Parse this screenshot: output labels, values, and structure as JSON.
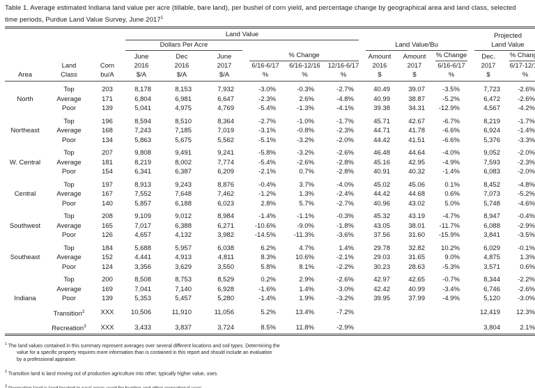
{
  "colors": {
    "background": "#ffffff",
    "text": "#1a1a1a",
    "rule": "#3f3f3f"
  },
  "title": {
    "text": "Table 1. Average estimated Indiana land value per acre (tillable, bare land), per bushel of corn yield, and percentage change by geographical area and land class, selected time periods, Purdue Land Value Survey, June 2017",
    "sup": "1"
  },
  "header": {
    "land_value": "Land Value",
    "projected_line1": "Projected",
    "projected_line2": "Land Value",
    "dollars_per_acre": "Dollars Per Acre",
    "land_value_bu": "Land Value/Bu",
    "pct_change": "% Change",
    "june": "June",
    "dec": "Dec",
    "dec_label": "Dec.",
    "amount": "Amount",
    "y2016": "2016",
    "y2017": "2017",
    "range_6_16_6_17": "6/16-6/17",
    "range_6_16_12_16": "6/16-12/16",
    "range_12_16_6_17": "12/16-6/17",
    "range_6_17_12_17": "6/17-12/17",
    "col_area": "Area",
    "col_land": "Land",
    "col_class": "Class",
    "col_corn": "Corn",
    "col_bua": "bu/A",
    "dollar_a": "$/A",
    "dollar": "$",
    "pct": "%"
  },
  "rows": [
    {
      "area": "",
      "cls": "Top",
      "sup": "",
      "gap": true,
      "values": [
        "203",
        "8,178",
        "8,153",
        "7,932",
        "-3.0%",
        "-0.3%",
        "-2.7%",
        "40.49",
        "39.07",
        "-3.5%",
        "7,723",
        "-2.6%"
      ]
    },
    {
      "area": "North",
      "cls": "Average",
      "sup": "",
      "gap": false,
      "values": [
        "171",
        "6,804",
        "6,981",
        "6,647",
        "-2.3%",
        "2.6%",
        "-4.8%",
        "40.99",
        "38.87",
        "-5.2%",
        "6,472",
        "-2.6%"
      ]
    },
    {
      "area": "",
      "cls": "Poor",
      "sup": "",
      "gap": false,
      "values": [
        "139",
        "5,041",
        "4,975",
        "4,769",
        "-5.4%",
        "-1.3%",
        "-4.1%",
        "39.38",
        "34.31",
        "-12.9%",
        "4,567",
        "-4.2%"
      ]
    },
    {
      "area": "",
      "cls": "Top",
      "sup": "",
      "gap": true,
      "values": [
        "196",
        "8,594",
        "8,510",
        "8,364",
        "-2.7%",
        "-1.0%",
        "-1.7%",
        "45.71",
        "42.67",
        "-6.7%",
        "8,219",
        "-1.7%"
      ]
    },
    {
      "area": "Northeast",
      "cls": "Average",
      "sup": "",
      "gap": false,
      "values": [
        "168",
        "7,243",
        "7,185",
        "7,019",
        "-3.1%",
        "-0.8%",
        "-2.3%",
        "44.71",
        "41.78",
        "-6.6%",
        "6,924",
        "-1.4%"
      ]
    },
    {
      "area": "",
      "cls": "Poor",
      "sup": "",
      "gap": false,
      "values": [
        "134",
        "5,863",
        "5,675",
        "5,562",
        "-5.1%",
        "-3.2%",
        "-2.0%",
        "44.42",
        "41.51",
        "-6.6%",
        "5,376",
        "-3.3%"
      ]
    },
    {
      "area": "",
      "cls": "Top",
      "sup": "",
      "gap": true,
      "values": [
        "207",
        "9,808",
        "9,491",
        "9,241",
        "-5.8%",
        "-3.2%",
        "-2.6%",
        "46.48",
        "44.64",
        "-4.0%",
        "9,052",
        "-2.0%"
      ]
    },
    {
      "area": "W. Central",
      "cls": "Average",
      "sup": "",
      "gap": false,
      "values": [
        "181",
        "8,219",
        "8,002",
        "7,774",
        "-5.4%",
        "-2.6%",
        "-2.8%",
        "45.16",
        "42.95",
        "-4.9%",
        "7,593",
        "-2.3%"
      ]
    },
    {
      "area": "",
      "cls": "Poor",
      "sup": "",
      "gap": false,
      "values": [
        "154",
        "6,341",
        "6,387",
        "6,209",
        "-2.1%",
        "0.7%",
        "-2.8%",
        "40.91",
        "40.32",
        "-1.4%",
        "6,083",
        "-2.0%"
      ]
    },
    {
      "area": "",
      "cls": "Top",
      "sup": "",
      "gap": true,
      "values": [
        "197",
        "8,913",
        "9,243",
        "8,876",
        "-0.4%",
        "3.7%",
        "-4.0%",
        "45.02",
        "45.06",
        "0.1%",
        "8,452",
        "-4.8%"
      ]
    },
    {
      "area": "Central",
      "cls": "Average",
      "sup": "",
      "gap": false,
      "values": [
        "167",
        "7,552",
        "7,648",
        "7,462",
        "-1.2%",
        "1.3%",
        "-2.4%",
        "44.42",
        "44.68",
        "0.6%",
        "7,073",
        "-5.2%"
      ]
    },
    {
      "area": "",
      "cls": "Poor",
      "sup": "",
      "gap": false,
      "values": [
        "140",
        "5,857",
        "6,188",
        "6,023",
        "2.8%",
        "5.7%",
        "-2.7%",
        "40.96",
        "43.02",
        "5.0%",
        "5,748",
        "-4.6%"
      ]
    },
    {
      "area": "",
      "cls": "Top",
      "sup": "",
      "gap": true,
      "values": [
        "208",
        "9,109",
        "9,012",
        "8,984",
        "-1.4%",
        "-1.1%",
        "-0.3%",
        "45.32",
        "43.19",
        "-4.7%",
        "8,947",
        "-0.4%"
      ]
    },
    {
      "area": "Southwest",
      "cls": "Average",
      "sup": "",
      "gap": false,
      "values": [
        "165",
        "7,017",
        "6,388",
        "6,271",
        "-10.6%",
        "-9.0%",
        "-1.8%",
        "43.05",
        "38.01",
        "-11.7%",
        "6,088",
        "-2.9%"
      ]
    },
    {
      "area": "",
      "cls": "Poor",
      "sup": "",
      "gap": false,
      "values": [
        "126",
        "4,657",
        "4,132",
        "3,982",
        "-14.5%",
        "-11.3%",
        "-3.6%",
        "37.56",
        "31.60",
        "-15.9%",
        "3,841",
        "-3.5%"
      ]
    },
    {
      "area": "",
      "cls": "Top",
      "sup": "",
      "gap": true,
      "values": [
        "184",
        "5,688",
        "5,957",
        "6,038",
        "6.2%",
        "4.7%",
        "1.4%",
        "29.78",
        "32.82",
        "10.2%",
        "6,029",
        "-0.1%"
      ]
    },
    {
      "area": "Southeast",
      "cls": "Average",
      "sup": "",
      "gap": false,
      "values": [
        "152",
        "4,441",
        "4,913",
        "4,811",
        "8.3%",
        "10.6%",
        "-2.1%",
        "29.03",
        "31.65",
        "9.0%",
        "4,875",
        "1.3%"
      ]
    },
    {
      "area": "",
      "cls": "Poor",
      "sup": "",
      "gap": false,
      "values": [
        "124",
        "3,356",
        "3,629",
        "3,550",
        "5.8%",
        "8.1%",
        "-2.2%",
        "30.23",
        "28.63",
        "-5.3%",
        "3,571",
        "0.6%"
      ]
    },
    {
      "area": "",
      "cls": "Top",
      "sup": "",
      "gap": true,
      "values": [
        "200",
        "8,508",
        "8,753",
        "8,529",
        "0.2%",
        "2.9%",
        "-2.6%",
        "42.97",
        "42.65",
        "-0.7%",
        "8,344",
        "-2.2%"
      ]
    },
    {
      "area": "",
      "cls": "Average",
      "sup": "",
      "gap": false,
      "values": [
        "169",
        "7,041",
        "7,140",
        "6,928",
        "-1.6%",
        "1.4%",
        "-3.0%",
        "42.42",
        "40.99",
        "-3.4%",
        "6,746",
        "-2.6%"
      ]
    },
    {
      "area": "Indiana",
      "cls": "Poor",
      "sup": "",
      "gap": false,
      "values": [
        "139",
        "5,353",
        "5,457",
        "5,280",
        "-1.4%",
        "1.9%",
        "-3.2%",
        "39.95",
        "37.99",
        "-4.9%",
        "5,120",
        "-3.0%"
      ]
    },
    {
      "area": "",
      "cls": "Transition",
      "sup": "2",
      "gap": true,
      "values": [
        "XXX",
        "10,506",
        "11,910",
        "11,056",
        "5.2%",
        "13.4%",
        "-7.2%",
        "",
        "",
        "",
        "12,419",
        "12.3%"
      ]
    },
    {
      "area": "",
      "cls": "Recreation",
      "sup": "3",
      "gap": true,
      "values": [
        "XXX",
        "3,433",
        "3,837",
        "3,724",
        "8.5%",
        "11.8%",
        "-2.9%",
        "",
        "",
        "",
        "3,804",
        "2.1%"
      ]
    }
  ],
  "footnotes": [
    {
      "sup": "1",
      "lines": [
        "The land values contained in this summary represent averages over several different locations and soil types. Determining the",
        "value for a specific property requires more information than is contained in this report and should include an evaluation",
        "by a professional appraiser."
      ]
    },
    {
      "sup": "2",
      "lines": [
        "Transition land is land moving out of production agriculture into other, typically higher value, uses."
      ]
    },
    {
      "sup": "3",
      "lines": [
        "Recreation land is land located in rural areas used for hunting and other recreational uses."
      ]
    }
  ]
}
